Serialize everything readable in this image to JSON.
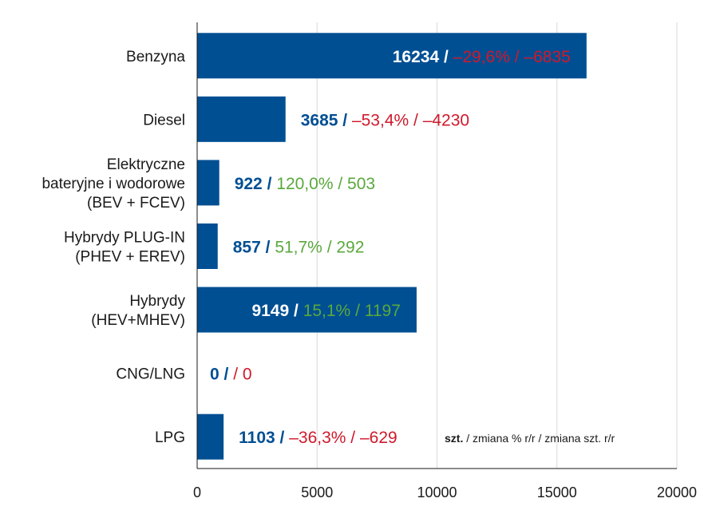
{
  "chart_data": {
    "type": "bar",
    "orientation": "horizontal",
    "categories": [
      [
        "Benzyna"
      ],
      [
        "Diesel"
      ],
      [
        "Elektryczne",
        "bateryjne i wodorowe",
        "(BEV + FCEV)"
      ],
      [
        "Hybrydy PLUG-IN",
        "(PHEV + EREV)"
      ],
      [
        "Hybrydy",
        "(HEV+MHEV)"
      ],
      [
        "CNG/LNG"
      ],
      [
        "LPG"
      ]
    ],
    "values": [
      16234,
      3685,
      922,
      857,
      9149,
      0,
      1103
    ],
    "labels": [
      {
        "main": "16234",
        "sep": " / ",
        "pct": "–29,6%",
        "sep2": " / ",
        "abs": "–6835",
        "trend": "down",
        "inside": true
      },
      {
        "main": "3685",
        "sep": " / ",
        "pct": "–53,4%",
        "sep2": " / ",
        "abs": "–4230",
        "trend": "down",
        "inside": false
      },
      {
        "main": "922",
        "sep": " / ",
        "pct": "120,0%",
        "sep2": " / ",
        "abs": "503",
        "trend": "up",
        "inside": false
      },
      {
        "main": "857",
        "sep": " / ",
        "pct": "51,7%",
        "sep2": " / ",
        "abs": "292",
        "trend": "up",
        "inside": false
      },
      {
        "main": "9149",
        "sep": " / ",
        "pct": "15,1%",
        "sep2": " / ",
        "abs": "1197",
        "trend": "up",
        "inside": true
      },
      {
        "main": "0",
        "sep": " /  ",
        "pct": " ",
        "sep2": " / ",
        "abs": "0",
        "trend": "down",
        "inside": false
      },
      {
        "main": "1103",
        "sep": " / ",
        "pct": "–36,3%",
        "sep2": " / ",
        "abs": "–629",
        "trend": "down",
        "inside": false
      }
    ],
    "xlim": [
      0,
      20000
    ],
    "xticks": [
      "0",
      "5000",
      "10000",
      "15000",
      "20000"
    ],
    "grid": true,
    "legend_note": {
      "bold": "szt.",
      "rest": " / zmiana % r/r / zmiana szt. r/r"
    },
    "colors": {
      "bar": "#004f93",
      "value_main": "#004f93",
      "value_main_inside": "#ffffff",
      "up": "#5aa83c",
      "down": "#d0192b",
      "grid": "#d9d9d9",
      "axis": "#1a1a1a"
    }
  }
}
